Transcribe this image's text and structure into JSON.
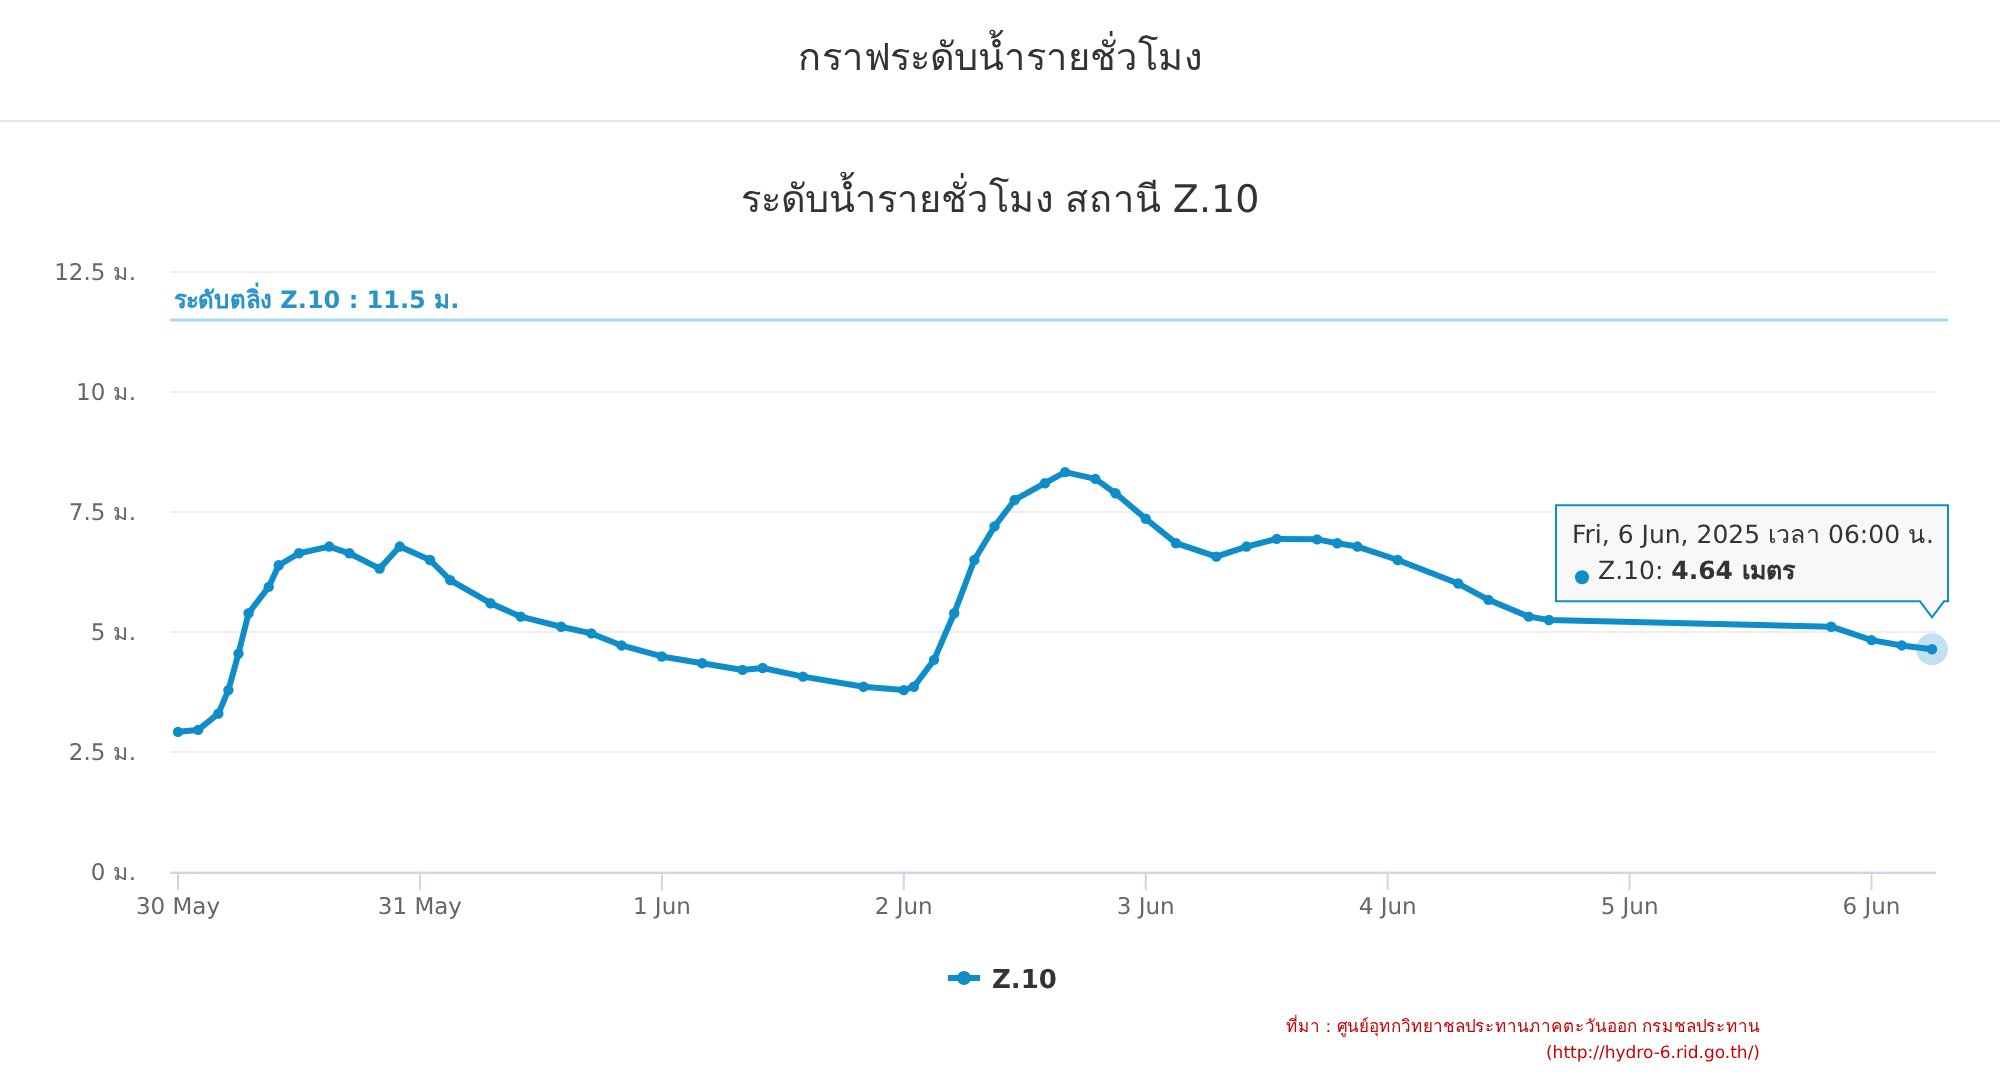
{
  "chart_data": {
    "type": "line",
    "title": "กราฟระดับน้ำรายชั่วโมง",
    "subtitle": "ระดับน้ำรายชั่วโมง สถานี Z.10",
    "x": [
      "2025-05-30T00:00",
      "2025-05-30T02:00",
      "2025-05-30T04:00",
      "2025-05-30T05:00",
      "2025-05-30T06:00",
      "2025-05-30T07:00",
      "2025-05-30T09:00",
      "2025-05-30T10:00",
      "2025-05-30T12:00",
      "2025-05-30T15:00",
      "2025-05-30T17:00",
      "2025-05-30T20:00",
      "2025-05-30T22:00",
      "2025-05-31T01:00",
      "2025-05-31T03:00",
      "2025-05-31T07:00",
      "2025-05-31T10:00",
      "2025-05-31T14:00",
      "2025-05-31T17:00",
      "2025-05-31T20:00",
      "2025-06-01T00:00",
      "2025-06-01T04:00",
      "2025-06-01T08:00",
      "2025-06-01T10:00",
      "2025-06-01T14:00",
      "2025-06-01T20:00",
      "2025-06-02T00:00",
      "2025-06-02T01:00",
      "2025-06-02T03:00",
      "2025-06-02T05:00",
      "2025-06-02T07:00",
      "2025-06-02T09:00",
      "2025-06-02T11:00",
      "2025-06-02T14:00",
      "2025-06-02T16:00",
      "2025-06-02T19:00",
      "2025-06-02T21:00",
      "2025-06-03T00:00",
      "2025-06-03T03:00",
      "2025-06-03T07:00",
      "2025-06-03T10:00",
      "2025-06-03T13:00",
      "2025-06-03T17:00",
      "2025-06-03T19:00",
      "2025-06-03T21:00",
      "2025-06-04T01:00",
      "2025-06-04T07:00",
      "2025-06-04T10:00",
      "2025-06-04T14:00",
      "2025-06-04T16:00",
      "2025-06-05T20:00",
      "2025-06-06T00:00",
      "2025-06-06T03:00",
      "2025-06-06T06:00"
    ],
    "series": [
      {
        "name": "Z.10",
        "color": "#0f8dc8",
        "values": [
          2.92,
          2.96,
          3.3,
          3.79,
          4.55,
          5.39,
          5.94,
          6.39,
          6.64,
          6.78,
          6.64,
          6.32,
          6.78,
          6.5,
          6.08,
          5.6,
          5.32,
          5.11,
          4.97,
          4.72,
          4.49,
          4.35,
          4.21,
          4.25,
          4.07,
          3.86,
          3.79,
          3.86,
          4.42,
          5.39,
          6.5,
          7.2,
          7.75,
          8.1,
          8.33,
          8.19,
          7.89,
          7.36,
          6.85,
          6.57,
          6.78,
          6.94,
          6.93,
          6.85,
          6.78,
          6.5,
          6.01,
          5.67,
          5.32,
          5.25,
          5.11,
          4.83,
          4.72,
          4.64
        ]
      }
    ],
    "xlim": [
      "2025-05-30T00:00",
      "2025-06-06T06:00"
    ],
    "xticks": [
      {
        "value": "2025-05-30",
        "label": "30 May"
      },
      {
        "value": "2025-05-31",
        "label": "31 May"
      },
      {
        "value": "2025-06-01",
        "label": "1 Jun"
      },
      {
        "value": "2025-06-02",
        "label": "2 Jun"
      },
      {
        "value": "2025-06-03",
        "label": "3 Jun"
      },
      {
        "value": "2025-06-04",
        "label": "4 Jun"
      },
      {
        "value": "2025-06-05",
        "label": "5 Jun"
      },
      {
        "value": "2025-06-06",
        "label": "6 Jun"
      }
    ],
    "ylim": [
      0,
      12.5
    ],
    "yticks": [
      {
        "value": 0,
        "label": "0 ม."
      },
      {
        "value": 2.5,
        "label": "2.5 ม."
      },
      {
        "value": 5,
        "label": "5 ม."
      },
      {
        "value": 7.5,
        "label": "7.5 ม."
      },
      {
        "value": 10,
        "label": "10 ม."
      },
      {
        "value": 12.5,
        "label": "12.5 ม."
      }
    ],
    "ref_lines": [
      {
        "axis": "y",
        "value": 11.5,
        "label": "ระดับตลิ่ง Z.10 : 11.5 ม.",
        "color": "#a9d8ec"
      }
    ],
    "annotations": [
      "Fri, 6 Jun, 2025 เวลา 06:00 น.",
      "Z.10: **4.64 เมตร**",
      "ที่มา : ศูนย์อุทกวิทยาชลประทานภาคตะวันออก กรมชลประทาน",
      "(http://hydro-6.rid.go.th/)"
    ],
    "grid": "y",
    "legend": "bottom",
    "marker": "circle",
    "line_style": "solid"
  }
}
